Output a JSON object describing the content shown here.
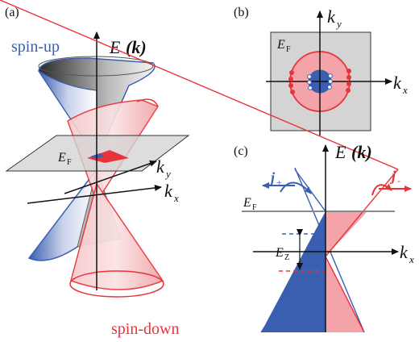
{
  "panels": {
    "a": {
      "tag": "(a)",
      "axis_e": "E",
      "axis_e_arg": "(k)",
      "axis_ky": "k",
      "axis_ky_sub": "y",
      "axis_kx": "k",
      "axis_kx_sub": "x",
      "fermi": "E",
      "fermi_sub": "F",
      "spin_up": "spin-up",
      "spin_down": "spin-down"
    },
    "b": {
      "tag": "(b)",
      "axis_ky": "k",
      "axis_ky_sub": "y",
      "axis_kx": "k",
      "axis_kx_sub": "x",
      "fermi": "E",
      "fermi_sub": "F"
    },
    "c": {
      "tag": "(c)",
      "axis_e": "E",
      "axis_e_arg": "(k)",
      "axis_kx": "k",
      "axis_kx_sub": "x",
      "fermi": "E",
      "fermi_sub": "F",
      "zeeman": "E",
      "zeeman_sub": "Z",
      "current_plus": "j",
      "current_plus_sub": "+",
      "current_minus": "j",
      "current_minus_sub": "-"
    }
  },
  "colors": {
    "spin_up": "#3a5fb0",
    "spin_down": "#e8333a",
    "spin_down_fill": "#f4a4a8",
    "gray_plane": "#d4d4d4",
    "fermi_line": "#8a8a8a"
  },
  "icons": [
    "axis-arrow",
    "curved-arrow"
  ]
}
